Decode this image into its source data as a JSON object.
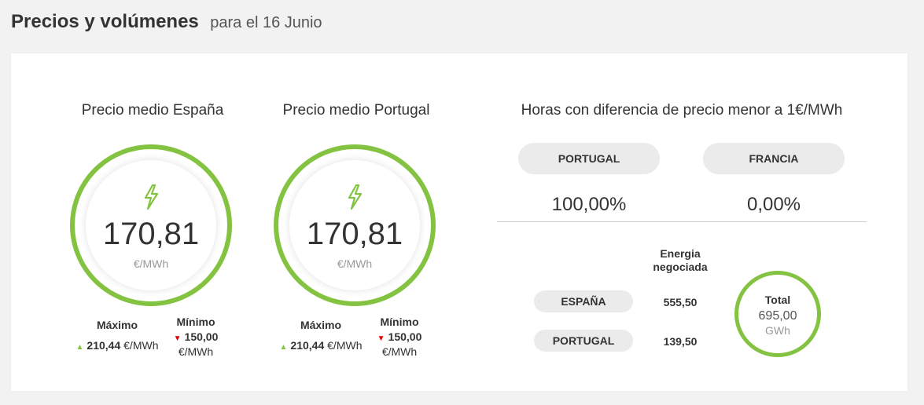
{
  "header": {
    "title": "Precios y volúmenes",
    "subtitle": "para el 16 Junio"
  },
  "spain": {
    "title": "Precio medio España",
    "value": "170,81",
    "unit": "€/MWh",
    "max_label": "Máximo",
    "max_value": "210,44",
    "max_unit": "€/MWh",
    "min_label": "Mínimo",
    "min_value": "150,00",
    "min_unit": "€/MWh"
  },
  "portugal": {
    "title": "Precio medio Portugal",
    "value": "170,81",
    "unit": "€/MWh",
    "max_label": "Máximo",
    "max_value": "210,44",
    "max_unit": "€/MWh",
    "min_label": "Mínimo",
    "min_value": "150,00",
    "min_unit": "€/MWh"
  },
  "price_diff": {
    "title": "Horas con diferencia de precio menor a 1€/MWh",
    "items": [
      {
        "label": "PORTUGAL",
        "value": "100,00%"
      },
      {
        "label": "FRANCIA",
        "value": "0,00%"
      }
    ]
  },
  "energy": {
    "header": "Energia negociada",
    "rows": [
      {
        "label": "ESPAÑA",
        "value": "555,50"
      },
      {
        "label": "PORTUGAL",
        "value": "139,50"
      }
    ],
    "total_label": "Total",
    "total_value": "695,00",
    "total_unit": "GWh"
  },
  "colors": {
    "accent": "#84c341",
    "down": "#e00000",
    "pill": "#ebebeb"
  },
  "icons": {
    "price": "lightning-bolt-icon",
    "max": "triangle-up-icon",
    "min": "triangle-down-icon"
  }
}
